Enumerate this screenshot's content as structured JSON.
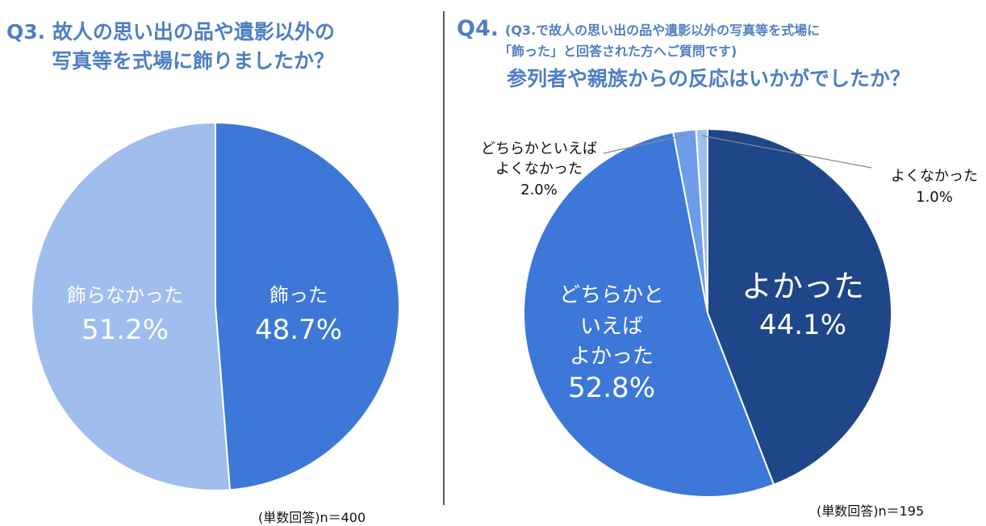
{
  "q3": {
    "title_line1": "Q3. 故人の思い出の品や遺影以外の",
    "title_line2": "写真等を式場に飾りましたか？",
    "note": "(単数回答)n＝400"
  },
  "q4": {
    "label": "Q4.",
    "sub_line1": "(Q3.で故人の思い出の品や遺影以外の写真等を式場に",
    "sub_line2": "「飾った」と回答された方へご質問です)",
    "title": "参列者や親族からの反応はいかがでしたか？",
    "note": "(単数回答)n＝195"
  },
  "chart_data": [
    {
      "type": "pie",
      "title": "Q3. 故人の思い出の品や遺影以外の写真等を式場に飾りましたか？",
      "start": "12 o'clock",
      "direction": "clockwise",
      "slices": [
        {
          "label": "飾った",
          "value": 48.7,
          "value_label": "48.7%",
          "color": "#3d78d8"
        },
        {
          "label": "飾らなかった",
          "value": 51.2,
          "value_label": "51.2%",
          "color": "#9fbeee"
        }
      ]
    },
    {
      "type": "pie",
      "title": "参列者や親族からの反応はいかがでしたか？",
      "start": "12 o'clock",
      "direction": "clockwise",
      "slices": [
        {
          "label": "よかった",
          "value": 44.1,
          "value_label": "44.1%",
          "color": "#1f4689"
        },
        {
          "label": "どちらかといえばよかった",
          "label_lines": [
            "どちらかと",
            "いえば",
            "よかった"
          ],
          "value": 52.8,
          "value_label": "52.8%",
          "color": "#3d78d8"
        },
        {
          "label": "どちらかといえばよくなかった",
          "label_lines": [
            "どちらかといえば",
            "よくなかった"
          ],
          "value": 2.0,
          "value_label": "2.0%",
          "color": "#6d9cea"
        },
        {
          "label": "よくなかった",
          "label_lines": [
            "よくなかった"
          ],
          "value": 1.0,
          "value_label": "1.0%",
          "color": "#9fbeee"
        }
      ]
    }
  ]
}
